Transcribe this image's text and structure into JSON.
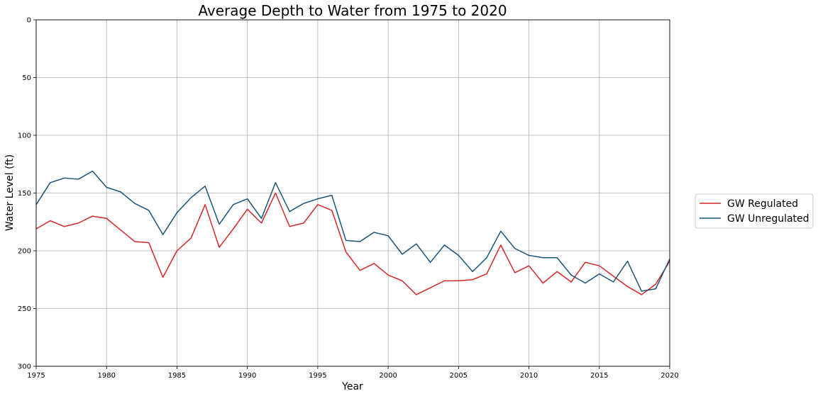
{
  "chart_data": {
    "type": "line",
    "title": "Average Depth to Water from 1975 to 2020",
    "xlabel": "Year",
    "ylabel": "Water Level (ft)",
    "xlim": [
      1975,
      2020
    ],
    "ylim": [
      0,
      300
    ],
    "y_inverted": true,
    "grid": true,
    "legend_position": "outside-right",
    "x_ticks": [
      1975,
      1980,
      1985,
      1990,
      1995,
      2000,
      2005,
      2010,
      2015,
      2020
    ],
    "y_ticks": [
      0,
      50,
      100,
      150,
      200,
      250,
      300
    ],
    "x": [
      1975,
      1976,
      1977,
      1978,
      1979,
      1980,
      1981,
      1982,
      1983,
      1984,
      1985,
      1986,
      1987,
      1988,
      1989,
      1990,
      1991,
      1992,
      1993,
      1994,
      1995,
      1996,
      1997,
      1998,
      1999,
      2000,
      2001,
      2002,
      2003,
      2004,
      2005,
      2006,
      2007,
      2008,
      2009,
      2010,
      2011,
      2012,
      2013,
      2014,
      2015,
      2016,
      2017,
      2018,
      2019,
      2020
    ],
    "series": [
      {
        "name": "GW Regulated",
        "color": "#d62728",
        "values": [
          181,
          174,
          179,
          176,
          170,
          172,
          182,
          192,
          193,
          223,
          200,
          189,
          160,
          197,
          181,
          164,
          176,
          150,
          179,
          176,
          160,
          165,
          201,
          217,
          211,
          221,
          226,
          238,
          232,
          226,
          226,
          225,
          220,
          195,
          219,
          213,
          228,
          218,
          227,
          210,
          213,
          222,
          231,
          238,
          229,
          209
        ]
      },
      {
        "name": "GW Unregulated",
        "color": "#1a5479",
        "values": [
          160,
          141,
          137,
          138,
          131,
          145,
          149,
          159,
          165,
          186,
          167,
          154,
          144,
          177,
          160,
          155,
          172,
          141,
          166,
          159,
          155,
          152,
          191,
          192,
          184,
          187,
          203,
          194,
          210,
          195,
          204,
          218,
          206,
          183,
          198,
          204,
          206,
          206,
          221,
          228,
          220,
          227,
          209,
          235,
          233,
          207
        ]
      }
    ]
  }
}
